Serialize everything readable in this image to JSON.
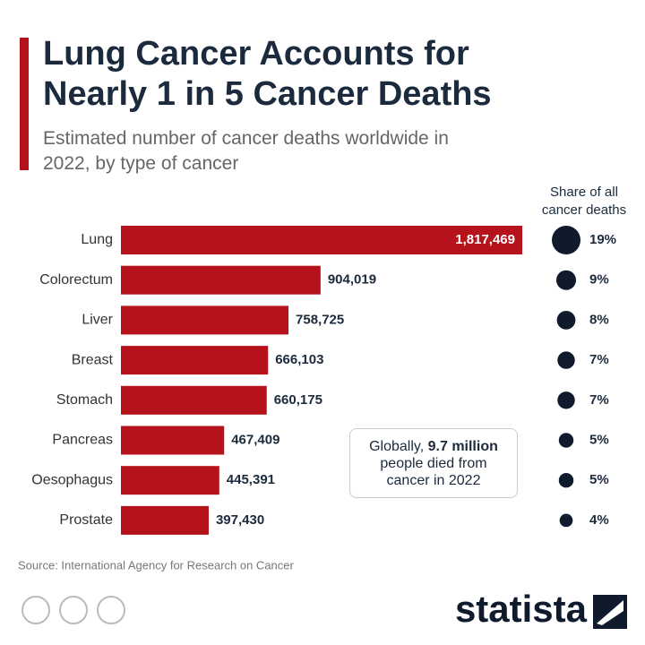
{
  "chart_data": {
    "type": "bar",
    "title": "Lung Cancer Accounts for Nearly 1 in 5 Cancer Deaths",
    "subtitle": "Estimated number of cancer deaths worldwide in 2022, by type of cancer",
    "categories": [
      "Lung",
      "Colorectum",
      "Liver",
      "Breast",
      "Stomach",
      "Pancreas",
      "Oesophagus",
      "Prostate"
    ],
    "values": [
      1817469,
      904019,
      758725,
      666103,
      660175,
      467409,
      445391,
      397430
    ],
    "value_labels": [
      "1,817,469",
      "904,019",
      "758,725",
      "666,103",
      "660,175",
      "467,409",
      "445,391",
      "397,430"
    ],
    "color": "#b5121b",
    "share": {
      "title": "Share of all cancer deaths",
      "values": [
        19,
        9,
        8,
        7,
        7,
        5,
        5,
        4
      ],
      "value_labels": [
        "19%",
        "9%",
        "8%",
        "7%",
        "7%",
        "5%",
        "5%",
        "4%"
      ],
      "color": "#0f1b2d"
    },
    "annotation": [
      "Globally, ",
      "9.7 million",
      " people died from cancer in 2022"
    ],
    "source": "Source: International Agency for Research on Cancer",
    "logo": "statista"
  }
}
